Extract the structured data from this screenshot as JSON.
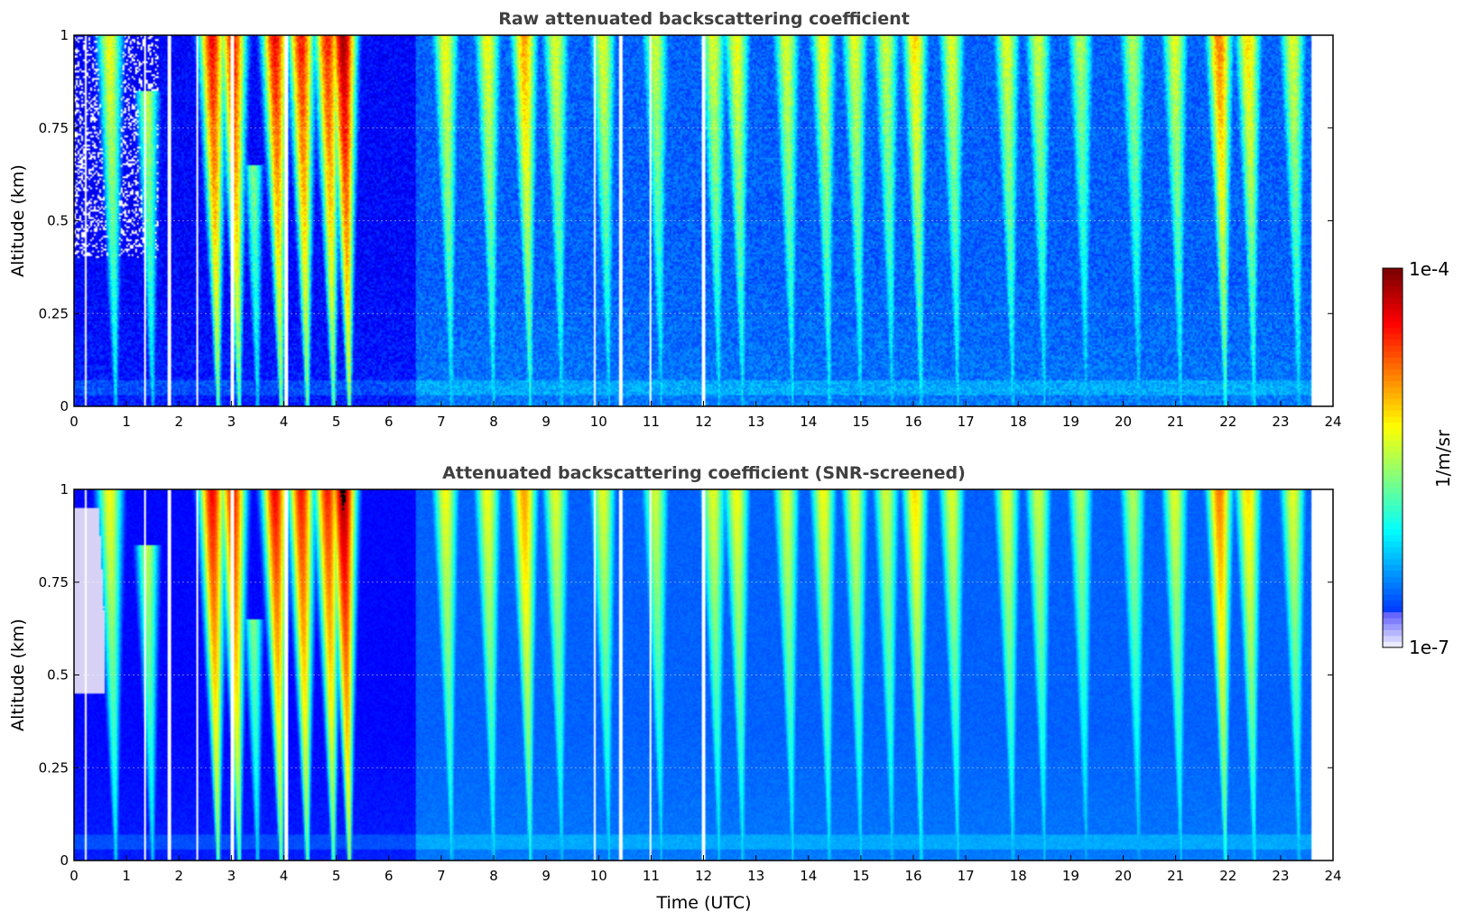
{
  "figure": {
    "colormap": "jet",
    "background_color": "#ffffff",
    "gridlines": true
  },
  "colorbar": {
    "label": "1/m/sr",
    "max_label": "1e-4",
    "min_label": "1e-7",
    "scale": "log",
    "range": [
      1e-07,
      0.0001
    ]
  },
  "chart_data": [
    {
      "type": "heatmap",
      "title": "Raw attenuated backscattering coefficient",
      "xlabel": "",
      "ylabel": "Altitude (km)",
      "xlim": [
        0,
        24
      ],
      "ylim": [
        0,
        1
      ],
      "xticks": [
        "0",
        "1",
        "2",
        "3",
        "4",
        "5",
        "6",
        "7",
        "8",
        "9",
        "10",
        "11",
        "12",
        "13",
        "14",
        "15",
        "16",
        "17",
        "18",
        "19",
        "20",
        "21",
        "22",
        "23",
        "24"
      ],
      "yticks": [
        "0",
        "0.25",
        "0.5",
        "0.75",
        "1"
      ],
      "data_end_time": 23.6,
      "data_gaps_time": [
        0.22,
        1.35,
        1.82,
        2.35,
        3.02,
        4.05,
        9.92,
        10.42,
        10.98,
        12.0
      ],
      "snr_screened": false,
      "plumes": [
        {
          "t": 0.8,
          "top": 1.0,
          "intensity": 0.62
        },
        {
          "t": 1.5,
          "top": 0.85,
          "intensity": 0.6
        },
        {
          "t": 2.75,
          "top": 1.0,
          "intensity": 0.88
        },
        {
          "t": 3.15,
          "top": 1.0,
          "intensity": 0.86
        },
        {
          "t": 3.5,
          "top": 0.65,
          "intensity": 0.6
        },
        {
          "t": 3.95,
          "top": 1.0,
          "intensity": 0.88
        },
        {
          "t": 4.45,
          "top": 1.0,
          "intensity": 0.86
        },
        {
          "t": 4.95,
          "top": 1.0,
          "intensity": 0.85
        },
        {
          "t": 5.25,
          "top": 1.0,
          "intensity": 0.97
        },
        {
          "t": 7.2,
          "top": 1.0,
          "intensity": 0.62
        },
        {
          "t": 8.0,
          "top": 1.0,
          "intensity": 0.62
        },
        {
          "t": 8.7,
          "top": 1.0,
          "intensity": 0.72
        },
        {
          "t": 9.3,
          "top": 1.0,
          "intensity": 0.6
        },
        {
          "t": 10.2,
          "top": 1.0,
          "intensity": 0.6
        },
        {
          "t": 11.2,
          "top": 1.0,
          "intensity": 0.58
        },
        {
          "t": 12.3,
          "top": 1.0,
          "intensity": 0.6
        },
        {
          "t": 12.75,
          "top": 1.0,
          "intensity": 0.62
        },
        {
          "t": 13.7,
          "top": 1.0,
          "intensity": 0.6
        },
        {
          "t": 14.4,
          "top": 1.0,
          "intensity": 0.62
        },
        {
          "t": 15.0,
          "top": 1.0,
          "intensity": 0.6
        },
        {
          "t": 15.6,
          "top": 1.0,
          "intensity": 0.58
        },
        {
          "t": 16.15,
          "top": 1.0,
          "intensity": 0.66
        },
        {
          "t": 16.85,
          "top": 1.0,
          "intensity": 0.6
        },
        {
          "t": 17.9,
          "top": 1.0,
          "intensity": 0.6
        },
        {
          "t": 18.5,
          "top": 1.0,
          "intensity": 0.58
        },
        {
          "t": 19.3,
          "top": 1.0,
          "intensity": 0.55
        },
        {
          "t": 20.3,
          "top": 1.0,
          "intensity": 0.55
        },
        {
          "t": 21.1,
          "top": 1.0,
          "intensity": 0.6
        },
        {
          "t": 21.95,
          "top": 1.0,
          "intensity": 0.76
        },
        {
          "t": 22.5,
          "top": 1.0,
          "intensity": 0.66
        },
        {
          "t": 23.35,
          "top": 1.0,
          "intensity": 0.6
        }
      ]
    },
    {
      "type": "heatmap",
      "title": "Attenuated backscattering coefficient (SNR-screened)",
      "xlabel": "Time (UTC)",
      "ylabel": "Altitude (km)",
      "xlim": [
        0,
        24
      ],
      "ylim": [
        0,
        1
      ],
      "xticks": [
        "0",
        "1",
        "2",
        "3",
        "4",
        "5",
        "6",
        "7",
        "8",
        "9",
        "10",
        "11",
        "12",
        "13",
        "14",
        "15",
        "16",
        "17",
        "18",
        "19",
        "20",
        "21",
        "22",
        "23",
        "24"
      ],
      "yticks": [
        "0",
        "0.25",
        "0.5",
        "0.75",
        "1"
      ],
      "data_end_time": 23.6,
      "data_gaps_time": [
        0.22,
        1.35,
        1.82,
        2.35,
        3.02,
        4.05,
        9.92,
        10.42,
        10.98,
        12.0
      ],
      "snr_screened": true,
      "plumes": [
        {
          "t": 0.8,
          "top": 1.0,
          "intensity": 0.62
        },
        {
          "t": 1.5,
          "top": 0.85,
          "intensity": 0.6
        },
        {
          "t": 2.75,
          "top": 1.0,
          "intensity": 0.88
        },
        {
          "t": 3.15,
          "top": 1.0,
          "intensity": 0.86
        },
        {
          "t": 3.5,
          "top": 0.65,
          "intensity": 0.6
        },
        {
          "t": 3.95,
          "top": 1.0,
          "intensity": 0.88
        },
        {
          "t": 4.45,
          "top": 1.0,
          "intensity": 0.86
        },
        {
          "t": 4.95,
          "top": 1.0,
          "intensity": 0.85
        },
        {
          "t": 5.25,
          "top": 1.0,
          "intensity": 0.97
        },
        {
          "t": 7.2,
          "top": 1.0,
          "intensity": 0.62
        },
        {
          "t": 8.0,
          "top": 1.0,
          "intensity": 0.62
        },
        {
          "t": 8.7,
          "top": 1.0,
          "intensity": 0.72
        },
        {
          "t": 9.3,
          "top": 1.0,
          "intensity": 0.6
        },
        {
          "t": 10.2,
          "top": 1.0,
          "intensity": 0.6
        },
        {
          "t": 11.2,
          "top": 1.0,
          "intensity": 0.58
        },
        {
          "t": 12.3,
          "top": 1.0,
          "intensity": 0.6
        },
        {
          "t": 12.75,
          "top": 1.0,
          "intensity": 0.62
        },
        {
          "t": 13.7,
          "top": 1.0,
          "intensity": 0.6
        },
        {
          "t": 14.4,
          "top": 1.0,
          "intensity": 0.62
        },
        {
          "t": 15.0,
          "top": 1.0,
          "intensity": 0.6
        },
        {
          "t": 15.6,
          "top": 1.0,
          "intensity": 0.58
        },
        {
          "t": 16.15,
          "top": 1.0,
          "intensity": 0.66
        },
        {
          "t": 16.85,
          "top": 1.0,
          "intensity": 0.6
        },
        {
          "t": 17.9,
          "top": 1.0,
          "intensity": 0.6
        },
        {
          "t": 18.5,
          "top": 1.0,
          "intensity": 0.58
        },
        {
          "t": 19.3,
          "top": 1.0,
          "intensity": 0.55
        },
        {
          "t": 20.3,
          "top": 1.0,
          "intensity": 0.55
        },
        {
          "t": 21.1,
          "top": 1.0,
          "intensity": 0.6
        },
        {
          "t": 21.95,
          "top": 1.0,
          "intensity": 0.76
        },
        {
          "t": 22.5,
          "top": 1.0,
          "intensity": 0.66
        },
        {
          "t": 23.35,
          "top": 1.0,
          "intensity": 0.6
        }
      ]
    }
  ]
}
